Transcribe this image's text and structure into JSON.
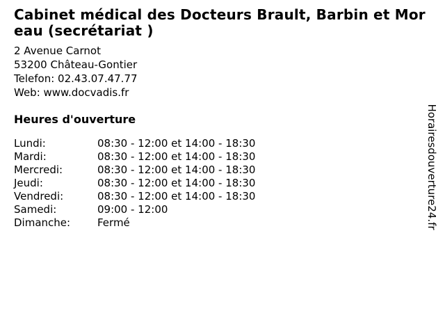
{
  "header": {
    "title": "Cabinet médical des Docteurs Brault, Barbin et Moreau (secrétariat )"
  },
  "contact": {
    "address_line1": "2 Avenue Carnot",
    "address_line2": "53200 Château-Gontier",
    "phone_line": "Telefon: 02.43.07.47.77",
    "web_line": "Web: www.docvadis.fr"
  },
  "hours": {
    "heading": "Heures d'ouverture",
    "rows": [
      {
        "day": "Lundi:",
        "time": "08:30 - 12:00 et 14:00 - 18:30"
      },
      {
        "day": "Mardi:",
        "time": "08:30 - 12:00 et 14:00 - 18:30"
      },
      {
        "day": "Mercredi:",
        "time": "08:30 - 12:00 et 14:00 - 18:30"
      },
      {
        "day": "Jeudi:",
        "time": "08:30 - 12:00 et 14:00 - 18:30"
      },
      {
        "day": "Vendredi:",
        "time": "08:30 - 12:00 et 14:00 - 18:30"
      },
      {
        "day": "Samedi:",
        "time": "09:00 - 12:00"
      },
      {
        "day": "Dimanche:",
        "time": "Fermé"
      }
    ]
  },
  "watermark": {
    "text": "Horairesdouverture24.fr"
  },
  "colors": {
    "text": "#000000",
    "background": "#ffffff"
  }
}
